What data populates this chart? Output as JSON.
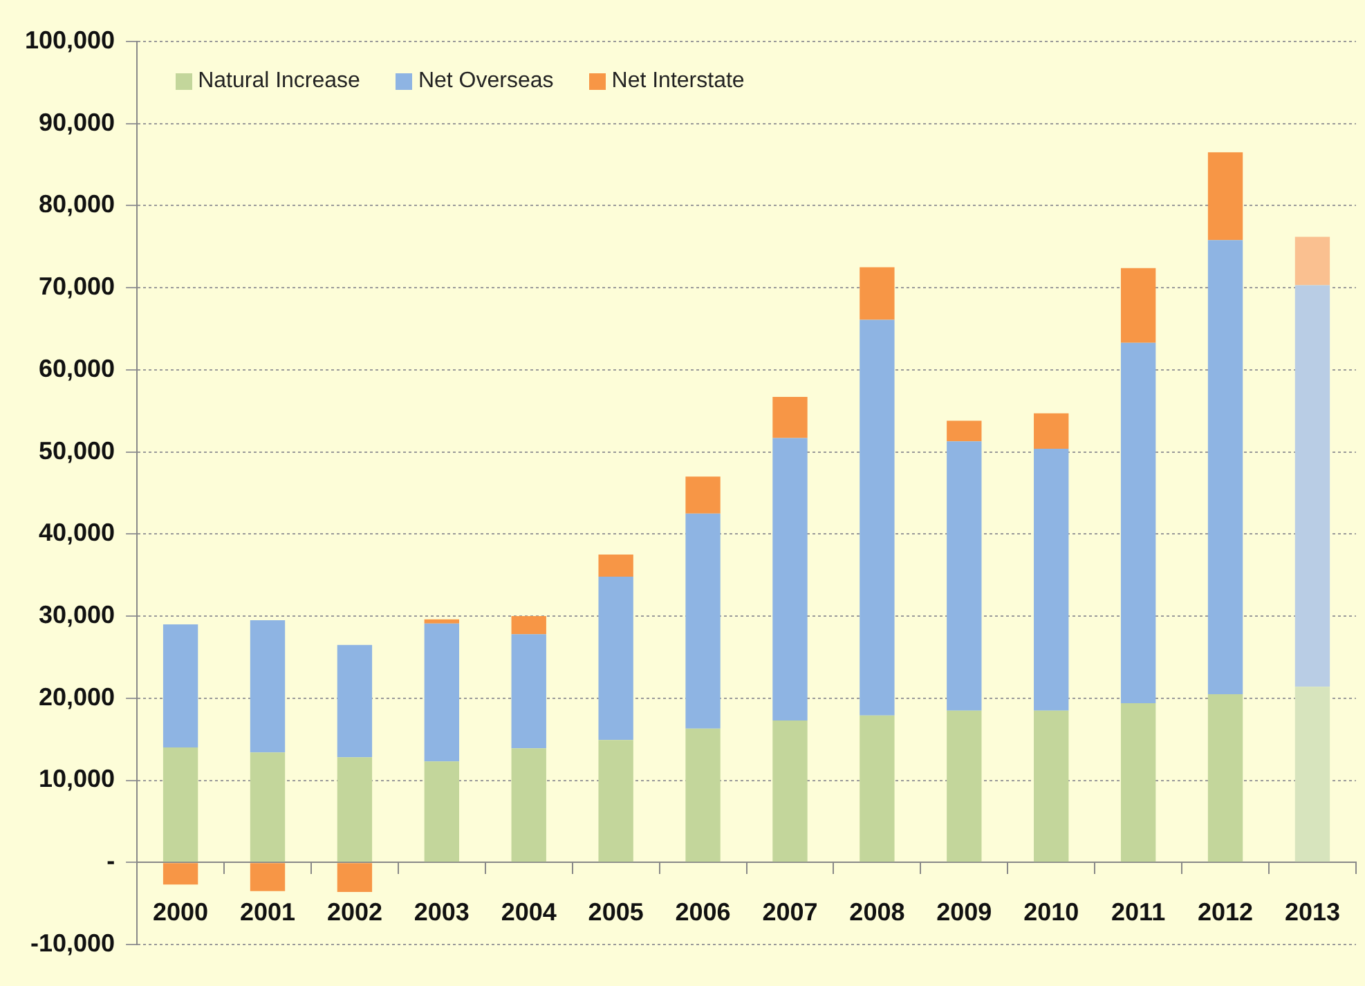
{
  "chart_data": {
    "type": "bar",
    "stacked": true,
    "legend": "top left",
    "grid": "y",
    "categories": [
      "2000",
      "2001",
      "2002",
      "2003",
      "2004",
      "2005",
      "2006",
      "2007",
      "2008",
      "2009",
      "2010",
      "2011",
      "2012",
      "2013"
    ],
    "series": [
      {
        "name": "Natural Increase",
        "color": "#c3d69b",
        "colors": [
          "#c3d69b",
          "#c3d69b",
          "#c3d69b",
          "#c3d69b",
          "#c3d69b",
          "#c3d69b",
          "#c3d69b",
          "#c3d69b",
          "#c3d69b",
          "#c3d69b",
          "#c3d69b",
          "#c3d69b",
          "#c3d69b",
          "#d7e4bd"
        ],
        "values": [
          14000,
          13400,
          12800,
          12300,
          13900,
          14900,
          16300,
          17300,
          17900,
          18500,
          18500,
          19400,
          20500,
          21400
        ]
      },
      {
        "name": "Net Overseas",
        "color": "#8eb4e3",
        "colors": [
          "#8eb4e3",
          "#8eb4e3",
          "#8eb4e3",
          "#8eb4e3",
          "#8eb4e3",
          "#8eb4e3",
          "#8eb4e3",
          "#8eb4e3",
          "#8eb4e3",
          "#8eb4e3",
          "#8eb4e3",
          "#8eb4e3",
          "#8eb4e3",
          "#b9cde5"
        ],
        "values": [
          15000,
          16100,
          13700,
          16800,
          13900,
          19900,
          26200,
          34400,
          48200,
          32800,
          31900,
          43900,
          55300,
          48900
        ]
      },
      {
        "name": "Net Interstate",
        "color": "#f79646",
        "colors": [
          "#f79646",
          "#f79646",
          "#f79646",
          "#f79646",
          "#f79646",
          "#f79646",
          "#f79646",
          "#f79646",
          "#f79646",
          "#f79646",
          "#f79646",
          "#f79646",
          "#f79646",
          "#fac090"
        ],
        "values": [
          -2700,
          -3500,
          -3600,
          500,
          2200,
          2700,
          4500,
          5000,
          6400,
          2500,
          4300,
          9100,
          10700,
          5900
        ]
      }
    ],
    "ylim": [
      -10000,
      100000
    ],
    "yticks": [
      {
        "value": -10000,
        "label": "-10,000"
      },
      {
        "value": 0,
        "label": "-"
      },
      {
        "value": 10000,
        "label": "10,000"
      },
      {
        "value": 20000,
        "label": "20,000"
      },
      {
        "value": 30000,
        "label": "30,000"
      },
      {
        "value": 40000,
        "label": "40,000"
      },
      {
        "value": 50000,
        "label": "50,000"
      },
      {
        "value": 60000,
        "label": "60,000"
      },
      {
        "value": 70000,
        "label": "70,000"
      },
      {
        "value": 80000,
        "label": "80,000"
      },
      {
        "value": 90000,
        "label": "90,000"
      },
      {
        "value": 100000,
        "label": "100,000"
      }
    ]
  }
}
